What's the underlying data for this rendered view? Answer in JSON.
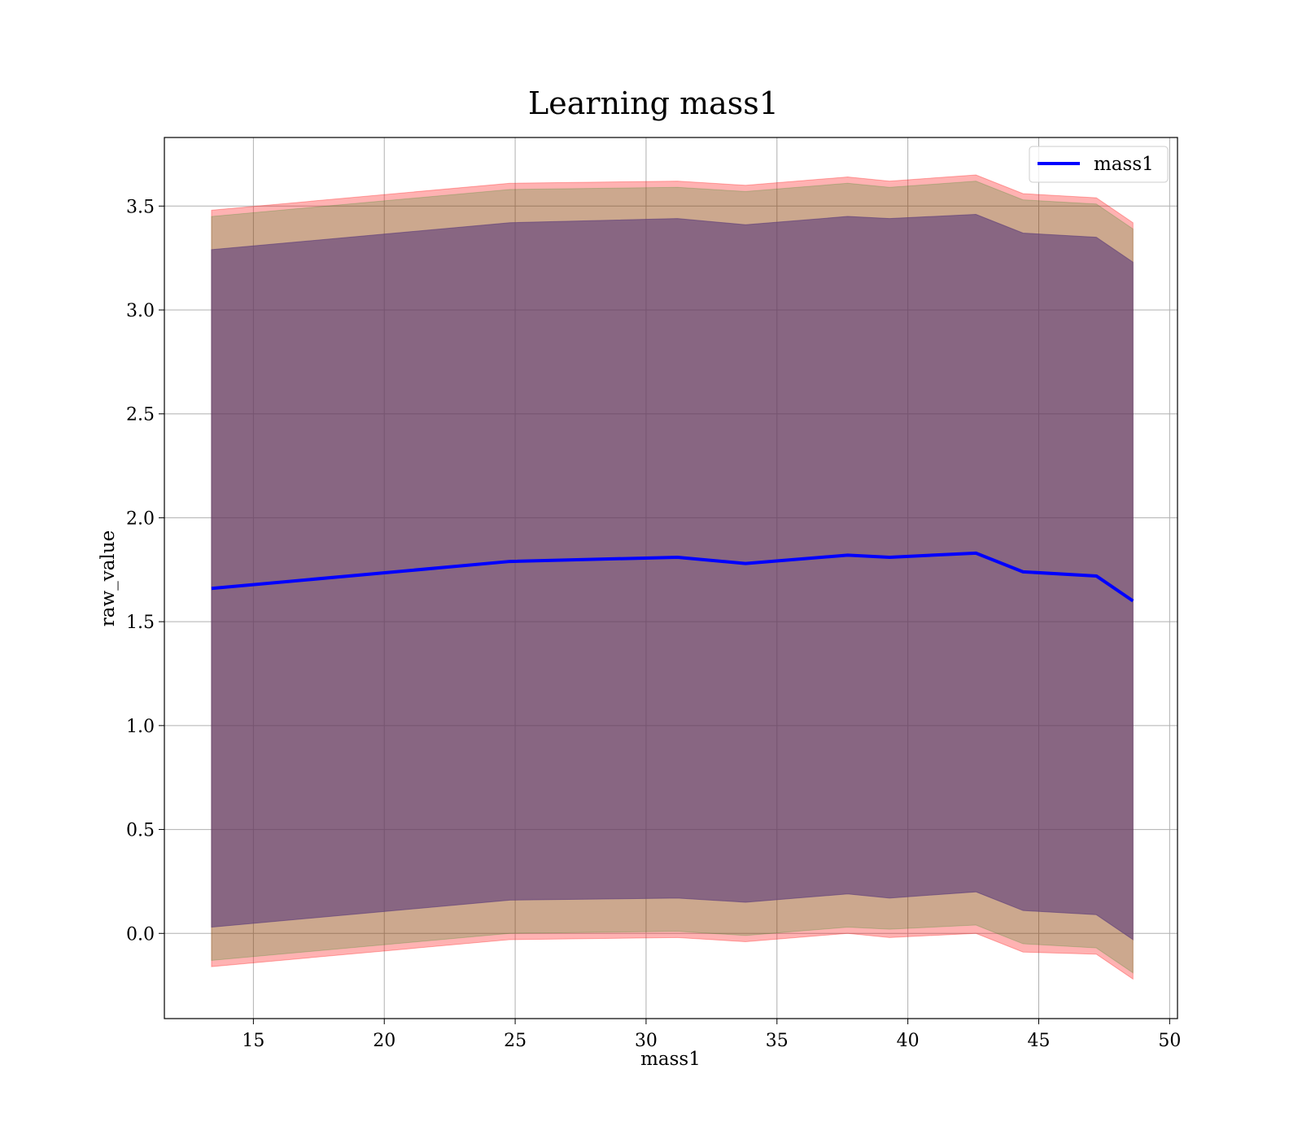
{
  "chart_data": {
    "type": "line",
    "title": "Learning mass1",
    "xlabel": "mass1",
    "ylabel": "raw_value",
    "xlim": [
      11.6,
      50.3
    ],
    "ylim": [
      -0.41,
      3.83
    ],
    "xticks": [
      15,
      20,
      25,
      30,
      35,
      40,
      45,
      50
    ],
    "yticks": [
      0.0,
      0.5,
      1.0,
      1.5,
      2.0,
      2.5,
      3.0,
      3.5
    ],
    "ytick_labels": [
      "0.0",
      "0.5",
      "1.0",
      "1.5",
      "2.0",
      "2.5",
      "3.0",
      "3.5"
    ],
    "grid": true,
    "legend": {
      "position": "top-right",
      "entries": [
        "mass1"
      ]
    },
    "x": [
      13.4,
      24.8,
      31.2,
      33.8,
      37.7,
      39.3,
      42.6,
      44.4,
      47.2,
      48.6
    ],
    "series": [
      {
        "name": "mass1",
        "color": "#0000ff",
        "values": [
          1.66,
          1.79,
          1.81,
          1.78,
          1.82,
          1.81,
          1.83,
          1.74,
          1.72,
          1.6
        ]
      }
    ],
    "bands": [
      {
        "color": "#ff0000",
        "opacity": 0.3,
        "lower": [
          -0.16,
          -0.03,
          -0.02,
          -0.04,
          0.0,
          -0.02,
          0.0,
          -0.09,
          -0.1,
          -0.22
        ],
        "upper": [
          3.48,
          3.61,
          3.62,
          3.6,
          3.64,
          3.62,
          3.65,
          3.56,
          3.54,
          3.42
        ]
      },
      {
        "color": "#008000",
        "opacity": 0.2,
        "lower": [
          -0.13,
          0.0,
          0.01,
          -0.01,
          0.03,
          0.02,
          0.04,
          -0.05,
          -0.07,
          -0.19
        ],
        "upper": [
          3.45,
          3.58,
          3.59,
          3.57,
          3.61,
          3.59,
          3.62,
          3.53,
          3.51,
          3.39
        ]
      },
      {
        "color": "#5a3a7a",
        "opacity": 0.6,
        "lower": [
          0.03,
          0.16,
          0.17,
          0.15,
          0.19,
          0.17,
          0.2,
          0.11,
          0.09,
          -0.03
        ],
        "upper": [
          3.29,
          3.42,
          3.44,
          3.41,
          3.45,
          3.44,
          3.46,
          3.37,
          3.35,
          3.23
        ]
      }
    ]
  }
}
